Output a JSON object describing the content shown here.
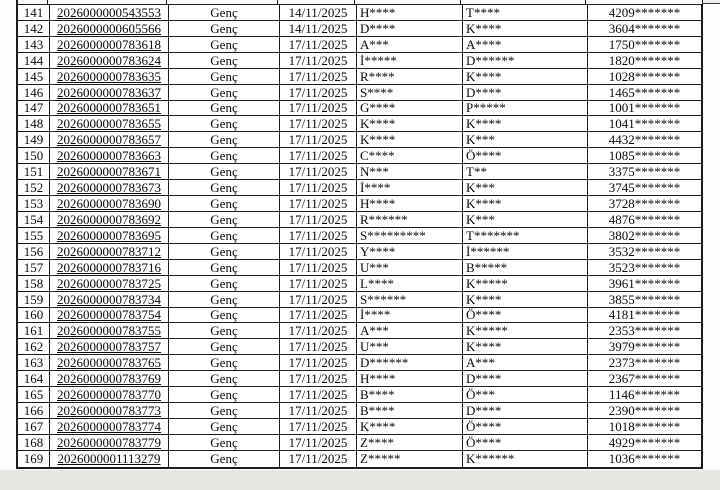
{
  "document": {
    "type": "masked-identity-list",
    "category_label": "Genç",
    "table": {
      "column_keys": [
        "row-number",
        "application-id",
        "category",
        "date",
        "first-name-masked",
        "last-name-masked",
        "national-id-masked"
      ],
      "rows": [
        [
          "141",
          "2026000000543553",
          "Genç",
          "14/11/2025",
          "H****",
          "T****",
          "4209*******"
        ],
        [
          "142",
          "2026000000605566",
          "Genç",
          "14/11/2025",
          "D****",
          "K****",
          "3604*******"
        ],
        [
          "143",
          "2026000000783618",
          "Genç",
          "17/11/2025",
          "A***",
          "A****",
          "1750*******"
        ],
        [
          "144",
          "2026000000783624",
          "Genç",
          "17/11/2025",
          "İ*****",
          "D******",
          "1820*******"
        ],
        [
          "145",
          "2026000000783635",
          "Genç",
          "17/11/2025",
          "R****",
          "K****",
          "1028*******"
        ],
        [
          "146",
          "2026000000783637",
          "Genç",
          "17/11/2025",
          "S****",
          "D****",
          "1465*******"
        ],
        [
          "147",
          "2026000000783651",
          "Genç",
          "17/11/2025",
          "G****",
          "P*****",
          "1001*******"
        ],
        [
          "148",
          "2026000000783655",
          "Genç",
          "17/11/2025",
          "K****",
          "K****",
          "1041*******"
        ],
        [
          "149",
          "2026000000783657",
          "Genç",
          "17/11/2025",
          "K****",
          "K***",
          "4432*******"
        ],
        [
          "150",
          "2026000000783663",
          "Genç",
          "17/11/2025",
          "C****",
          "Ö****",
          "1085*******"
        ],
        [
          "151",
          "2026000000783671",
          "Genç",
          "17/11/2025",
          "N***",
          "T**",
          "3375*******"
        ],
        [
          "152",
          "2026000000783673",
          "Genç",
          "17/11/2025",
          "İ****",
          "K***",
          "3745*******"
        ],
        [
          "153",
          "2026000000783690",
          "Genç",
          "17/11/2025",
          "H****",
          "K****",
          "3728*******"
        ],
        [
          "154",
          "2026000000783692",
          "Genç",
          "17/11/2025",
          "R******",
          "K***",
          "4876*******"
        ],
        [
          "155",
          "2026000000783695",
          "Genç",
          "17/11/2025",
          "S*********",
          "T*******",
          "3802*******"
        ],
        [
          "156",
          "2026000000783712",
          "Genç",
          "17/11/2025",
          "Y****",
          "İ******",
          "3532*******"
        ],
        [
          "157",
          "2026000000783716",
          "Genç",
          "17/11/2025",
          "U***",
          "B*****",
          "3523*******"
        ],
        [
          "158",
          "2026000000783725",
          "Genç",
          "17/11/2025",
          "L****",
          "K*****",
          "3961*******"
        ],
        [
          "159",
          "2026000000783734",
          "Genç",
          "17/11/2025",
          "S******",
          "K****",
          "3855*******"
        ],
        [
          "160",
          "2026000000783754",
          "Genç",
          "17/11/2025",
          "İ****",
          "Ö****",
          "4181*******"
        ],
        [
          "161",
          "2026000000783755",
          "Genç",
          "17/11/2025",
          "A***",
          "K*****",
          "2353*******"
        ],
        [
          "162",
          "2026000000783757",
          "Genç",
          "17/11/2025",
          "U***",
          "K****",
          "3979*******"
        ],
        [
          "163",
          "2026000000783765",
          "Genç",
          "17/11/2025",
          "D******",
          "A***",
          "2373*******"
        ],
        [
          "164",
          "2026000000783769",
          "Genç",
          "17/11/2025",
          "H****",
          "D****",
          "2367*******"
        ],
        [
          "165",
          "2026000000783770",
          "Genç",
          "17/11/2025",
          "B****",
          "Ö***",
          "1146*******"
        ],
        [
          "166",
          "2026000000783773",
          "Genç",
          "17/11/2025",
          "B****",
          "D****",
          "2390*******"
        ],
        [
          "167",
          "2026000000783774",
          "Genç",
          "17/11/2025",
          "K****",
          "Ö****",
          "1018*******"
        ],
        [
          "168",
          "2026000000783779",
          "Genç",
          "17/11/2025",
          "Z****",
          "Ö****",
          "4929*******"
        ],
        [
          "169",
          "2026000001113279",
          "Genç",
          "17/11/2025",
          "Z*****",
          "K******",
          "1036*******"
        ]
      ]
    },
    "colors": {
      "border": "#1c1c1c",
      "text": "#0b0b0b",
      "page_background": "#ffffff",
      "gutter_background": "#e9e7e3"
    }
  }
}
